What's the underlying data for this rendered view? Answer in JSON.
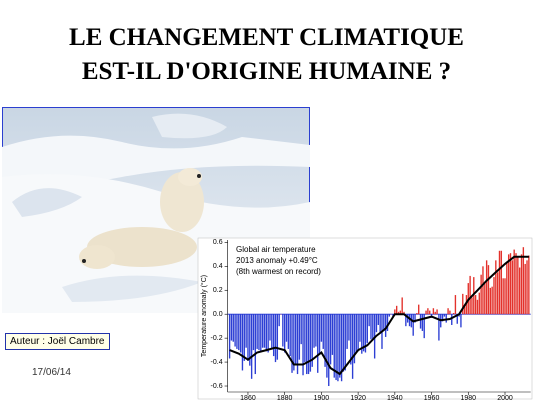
{
  "title": [
    "LE CHANGEMENT CLIMATIQUE",
    "EST-IL D'ORIGINE HUMAINE ?"
  ],
  "author": "Auteur : Joël Cambre",
  "date": "17/06/14",
  "chart_data": {
    "type": "bar",
    "annotations": [
      "Global air temperature",
      "2013 anomaly +0.49°C",
      "(8th warmest on record)"
    ],
    "y_label": "Temperature anomaly (°C)",
    "x": [
      1850,
      1851,
      1852,
      1853,
      1854,
      1855,
      1856,
      1857,
      1858,
      1859,
      1860,
      1861,
      1862,
      1863,
      1864,
      1865,
      1866,
      1867,
      1868,
      1869,
      1870,
      1871,
      1872,
      1873,
      1874,
      1875,
      1876,
      1877,
      1878,
      1879,
      1880,
      1881,
      1882,
      1883,
      1884,
      1885,
      1886,
      1887,
      1888,
      1889,
      1890,
      1891,
      1892,
      1893,
      1894,
      1895,
      1896,
      1897,
      1898,
      1899,
      1900,
      1901,
      1902,
      1903,
      1904,
      1905,
      1906,
      1907,
      1908,
      1909,
      1910,
      1911,
      1912,
      1913,
      1914,
      1915,
      1916,
      1917,
      1918,
      1919,
      1920,
      1921,
      1922,
      1923,
      1924,
      1925,
      1926,
      1927,
      1928,
      1929,
      1930,
      1931,
      1932,
      1933,
      1934,
      1935,
      1936,
      1937,
      1938,
      1939,
      1940,
      1941,
      1942,
      1943,
      1944,
      1945,
      1946,
      1947,
      1948,
      1949,
      1950,
      1951,
      1952,
      1953,
      1954,
      1955,
      1956,
      1957,
      1958,
      1959,
      1960,
      1961,
      1962,
      1963,
      1964,
      1965,
      1966,
      1967,
      1968,
      1969,
      1970,
      1971,
      1972,
      1973,
      1974,
      1975,
      1976,
      1977,
      1978,
      1979,
      1980,
      1981,
      1982,
      1983,
      1984,
      1985,
      1986,
      1987,
      1988,
      1989,
      1990,
      1991,
      1992,
      1993,
      1994,
      1995,
      1996,
      1997,
      1998,
      1999,
      2000,
      2001,
      2002,
      2003,
      2004,
      2005,
      2006,
      2007,
      2008,
      2009,
      2010,
      2011,
      2012,
      2013
    ],
    "values": [
      -0.37,
      -0.22,
      -0.23,
      -0.27,
      -0.29,
      -0.3,
      -0.32,
      -0.47,
      -0.39,
      -0.28,
      -0.39,
      -0.43,
      -0.54,
      -0.3,
      -0.5,
      -0.29,
      -0.3,
      -0.32,
      -0.28,
      -0.28,
      -0.31,
      -0.32,
      -0.22,
      -0.29,
      -0.35,
      -0.4,
      -0.38,
      -0.1,
      0.0,
      -0.27,
      -0.32,
      -0.23,
      -0.29,
      -0.35,
      -0.49,
      -0.47,
      -0.42,
      -0.5,
      -0.38,
      -0.25,
      -0.51,
      -0.4,
      -0.5,
      -0.5,
      -0.48,
      -0.44,
      -0.28,
      -0.27,
      -0.49,
      -0.34,
      -0.23,
      -0.29,
      -0.44,
      -0.53,
      -0.6,
      -0.42,
      -0.34,
      -0.53,
      -0.55,
      -0.56,
      -0.53,
      -0.56,
      -0.48,
      -0.47,
      -0.29,
      -0.22,
      -0.42,
      -0.54,
      -0.41,
      -0.32,
      -0.31,
      -0.23,
      -0.33,
      -0.31,
      -0.32,
      -0.24,
      -0.1,
      -0.21,
      -0.21,
      -0.37,
      -0.15,
      -0.09,
      -0.15,
      -0.29,
      -0.13,
      -0.19,
      -0.14,
      -0.02,
      0.0,
      -0.02,
      0.04,
      0.07,
      0.02,
      0.03,
      0.14,
      0.02,
      -0.1,
      -0.07,
      -0.1,
      -0.11,
      -0.18,
      -0.07,
      0.01,
      0.08,
      -0.12,
      -0.14,
      -0.2,
      0.03,
      0.05,
      0.03,
      -0.03,
      0.05,
      0.02,
      0.04,
      -0.22,
      -0.11,
      -0.06,
      -0.02,
      -0.07,
      0.05,
      0.03,
      -0.09,
      0.01,
      0.16,
      -0.08,
      -0.02,
      -0.11,
      0.17,
      0.06,
      0.16,
      0.26,
      0.32,
      0.14,
      0.31,
      0.16,
      0.12,
      0.18,
      0.33,
      0.4,
      0.27,
      0.45,
      0.41,
      0.22,
      0.23,
      0.31,
      0.45,
      0.35,
      0.53,
      0.53,
      0.3,
      0.3,
      0.44,
      0.5,
      0.51,
      0.45,
      0.54,
      0.51,
      0.48,
      0.39,
      0.5,
      0.56,
      0.42,
      0.45,
      0.49
    ],
    "colors": {
      "positive": "#e3322c",
      "negative": "#2d3fd4"
    },
    "line": {
      "color": "#000000",
      "x": [
        1850,
        1855,
        1860,
        1865,
        1870,
        1875,
        1880,
        1885,
        1890,
        1895,
        1900,
        1905,
        1910,
        1915,
        1920,
        1925,
        1930,
        1935,
        1940,
        1945,
        1950,
        1955,
        1960,
        1965,
        1970,
        1975,
        1980,
        1985,
        1990,
        1995,
        2000,
        2005,
        2010,
        2013
      ],
      "values": [
        -0.3,
        -0.33,
        -0.38,
        -0.32,
        -0.3,
        -0.28,
        -0.3,
        -0.42,
        -0.42,
        -0.38,
        -0.32,
        -0.45,
        -0.5,
        -0.4,
        -0.3,
        -0.26,
        -0.18,
        -0.12,
        0.0,
        0.0,
        -0.06,
        -0.04,
        -0.02,
        -0.05,
        -0.04,
        0.0,
        0.12,
        0.2,
        0.28,
        0.35,
        0.42,
        0.48,
        0.48,
        0.48
      ]
    },
    "xlim": [
      1850,
      2014
    ],
    "xticks": [
      1860,
      1880,
      1900,
      1920,
      1940,
      1960,
      1980,
      2000
    ],
    "ylim": [
      -0.65,
      0.62
    ],
    "yticks": [
      -0.6,
      -0.4,
      -0.2,
      {
        "value": 0,
        "label": "0.0"
      },
      0.2,
      0.4,
      0.6
    ]
  }
}
